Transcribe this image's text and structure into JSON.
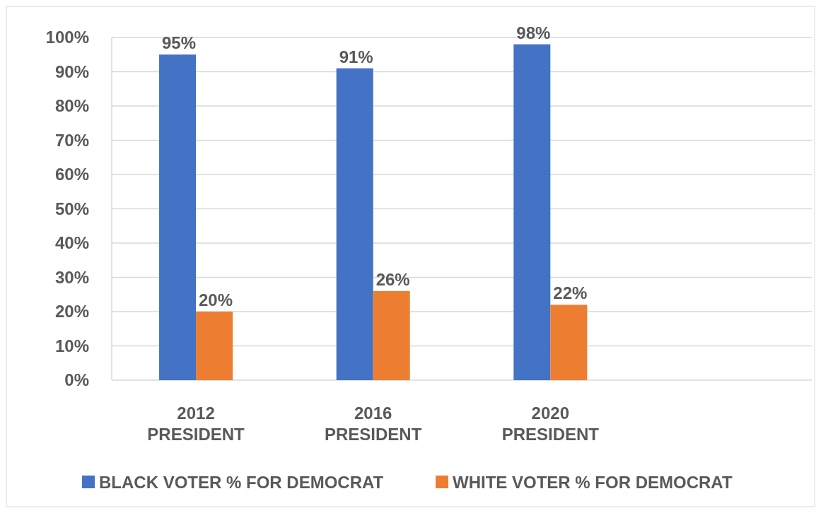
{
  "chart_data": {
    "type": "bar",
    "categories": [
      "2012 PRESIDENT",
      "2016 PRESIDENT",
      "2020 PRESIDENT",
      null
    ],
    "series": [
      {
        "name": "BLACK VOTER % FOR DEMOCRAT",
        "color": "#4472c4",
        "values": [
          95,
          91,
          98,
          null
        ],
        "value_labels": [
          "95%",
          "91%",
          "98%",
          null
        ]
      },
      {
        "name": "WHITE VOTER % FOR DEMOCRAT",
        "color": "#ed7d31",
        "values": [
          20,
          26,
          22,
          null
        ],
        "value_labels": [
          "20%",
          "26%",
          "22%",
          null
        ]
      }
    ],
    "ylim": [
      0,
      100
    ],
    "yticks": [
      {
        "value": 0,
        "label": "0%"
      },
      {
        "value": 10,
        "label": "10%"
      },
      {
        "value": 20,
        "label": "20%"
      },
      {
        "value": 30,
        "label": "30%"
      },
      {
        "value": 40,
        "label": "40%"
      },
      {
        "value": 50,
        "label": "50%"
      },
      {
        "value": 60,
        "label": "60%"
      },
      {
        "value": 70,
        "label": "70%"
      },
      {
        "value": 80,
        "label": "80%"
      },
      {
        "value": 90,
        "label": "90%"
      },
      {
        "value": 100,
        "label": "100%"
      }
    ],
    "grid": "y",
    "legend": "bottom"
  }
}
